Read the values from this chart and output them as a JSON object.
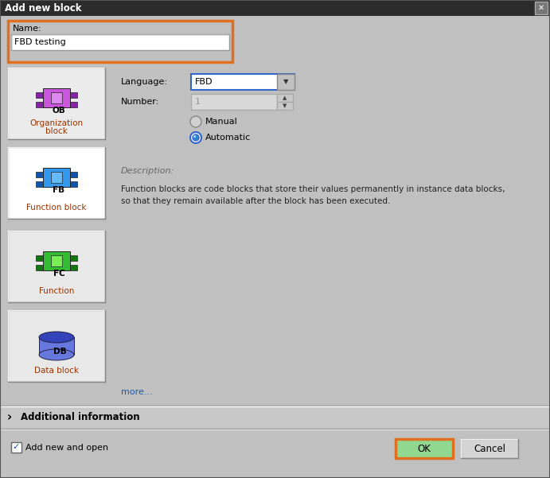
{
  "title": "Add new block",
  "bg_color": "#c0c0c0",
  "title_bar_color": "#2c2c2c",
  "title_text_color": "#ffffff",
  "name_label": "Name:",
  "name_value": "FBD testing",
  "name_border_color": "#e07020",
  "language_label": "Language:",
  "language_value": "FBD",
  "number_label": "Number:",
  "number_value": "1",
  "radio_manual": "Manual",
  "radio_auto": "Automatic",
  "desc_label": "Description:",
  "desc_line1": "Function blocks are code blocks that store their values permanently in instance data blocks,",
  "desc_line2": "so that they remain available after the block has been executed.",
  "more_text": "more...",
  "more_color": "#1a5aaa",
  "additional_info": "Additional information",
  "add_new_open": "Add new and open",
  "ok_text": "OK",
  "cancel_text": "Cancel",
  "ok_border_color": "#e07020",
  "ok_bg_color": "#90d890",
  "block_items": [
    {
      "label1": "Organization",
      "label2": "block",
      "tag": "OB",
      "body_color": "#cc55dd",
      "tab_color": "#8822aa",
      "inner_color": "#dd88ee",
      "shape": "puzzle",
      "bg": "#ebebeb"
    },
    {
      "label1": "Function block",
      "label2": "",
      "tag": "FB",
      "body_color": "#3399ee",
      "tab_color": "#1155aa",
      "inner_color": "#66bbff",
      "shape": "puzzle",
      "bg": "#ffffff"
    },
    {
      "label1": "Function",
      "label2": "",
      "tag": "FC",
      "body_color": "#33bb33",
      "tab_color": "#117711",
      "inner_color": "#77ee55",
      "shape": "puzzle",
      "bg": "#e8e8e8"
    },
    {
      "label1": "Data block",
      "label2": "",
      "tag": "DB",
      "body_color": "#6677dd",
      "tab_color": "#3344bb",
      "inner_color": "#8899ee",
      "shape": "cylinder",
      "bg": "#e8e8e8"
    }
  ],
  "label_color_selected": "#993300",
  "label_color_normal": "#993300",
  "input_bg": "#ffffff",
  "input_disabled_bg": "#d8d8d8"
}
